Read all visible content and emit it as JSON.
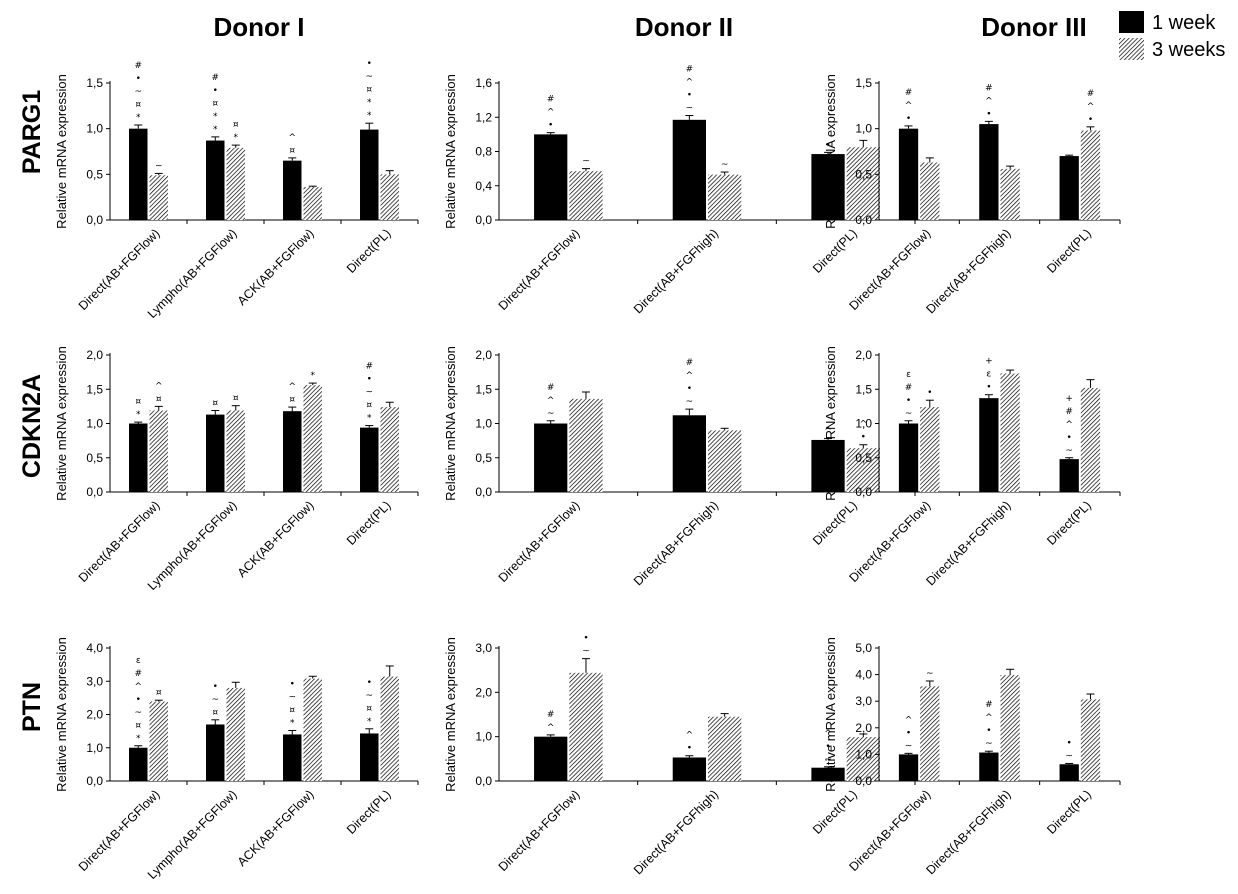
{
  "column_titles": [
    "Donor I",
    "Donor II",
    "Donor III"
  ],
  "row_titles": [
    "PARG1",
    "CDKN2A",
    "PTN"
  ],
  "legend": [
    {
      "label": "1 week",
      "pattern": "solid-black"
    },
    {
      "label": "3 weeks",
      "pattern": "hatched"
    }
  ],
  "colors": {
    "week1": "#000000",
    "week3_hatch": "#000000",
    "background": "#ffffff"
  },
  "chart_data": [
    {
      "type": "bar",
      "gene": "PARG1",
      "donor": "Donor I",
      "ylabel": "Relative mRNA expression",
      "ylim": [
        0,
        1.5
      ],
      "yticks": [
        "0,0",
        "0,5",
        "1,0",
        "1,5"
      ],
      "categories": [
        "Direct(AB+FGFlow)",
        "Lympho(AB+FGFlow)",
        "ACK(AB+FGFlow)",
        "Direct(PL)"
      ],
      "series": [
        {
          "name": "1 week",
          "values": [
            1.0,
            0.87,
            0.65,
            0.99
          ],
          "errors": [
            0.04,
            0.04,
            0.03,
            0.07
          ]
        },
        {
          "name": "3 weeks",
          "values": [
            0.49,
            0.79,
            0.36,
            0.5
          ],
          "errors": [
            0.02,
            0.03,
            0.01,
            0.04
          ]
        }
      ],
      "annotations": [
        [
          "# • ~ ¤ *",
          "~"
        ],
        [
          "# • ¤ * *",
          "¤ *"
        ],
        [
          "^ ¤",
          ""
        ],
        [
          "• ~ ¤ * *",
          ""
        ]
      ]
    },
    {
      "type": "bar",
      "gene": "PARG1",
      "donor": "Donor II",
      "ylabel": "Relative mRNA expression",
      "ylim": [
        0,
        1.6
      ],
      "yticks": [
        "0,0",
        "0,4",
        "0,8",
        "1,2",
        "1,6"
      ],
      "categories": [
        "Direct(AB+FGFlow)",
        "Direct(AB+FGFhigh)",
        "Direct(PL)"
      ],
      "series": [
        {
          "name": "1 week",
          "values": [
            1.0,
            1.17,
            0.77
          ],
          "errors": [
            0.02,
            0.05,
            0.02
          ]
        },
        {
          "name": "3 weeks",
          "values": [
            0.57,
            0.53,
            0.85
          ],
          "errors": [
            0.03,
            0.03,
            0.08
          ]
        }
      ],
      "annotations": [
        [
          "# ^ •",
          "~"
        ],
        [
          "# ^ • ~",
          "~"
        ],
        [
          "•",
          ""
        ]
      ]
    },
    {
      "type": "bar",
      "gene": "PARG1",
      "donor": "Donor III",
      "ylabel": "Relative mRNA expression",
      "ylim": [
        0,
        1.5
      ],
      "yticks": [
        "0,0",
        "0,5",
        "1,0",
        "1,5"
      ],
      "categories": [
        "Direct(AB+FGFlow)",
        "Direct(AB+FGFhigh)",
        "Direct(PL)"
      ],
      "series": [
        {
          "name": "1 week",
          "values": [
            1.0,
            1.05,
            0.7
          ],
          "errors": [
            0.03,
            0.03,
            0.01
          ]
        },
        {
          "name": "3 weeks",
          "values": [
            0.63,
            0.56,
            0.98
          ],
          "errors": [
            0.05,
            0.03,
            0.04
          ]
        }
      ],
      "annotations": [
        [
          "# ^ •",
          ""
        ],
        [
          "# ^ •",
          ""
        ],
        [
          "",
          "# ^ •"
        ]
      ]
    },
    {
      "type": "bar",
      "gene": "CDKN2A",
      "donor": "Donor I",
      "ylabel": "Relative mRNA expression",
      "ylim": [
        0,
        2.0
      ],
      "yticks": [
        "0,0",
        "0,5",
        "1,0",
        "1,5",
        "2,0"
      ],
      "categories": [
        "Direct(AB+FGFlow)",
        "Lympho(AB+FGFlow)",
        "ACK(AB+FGFlow)",
        "Direct(PL)"
      ],
      "series": [
        {
          "name": "1 week",
          "values": [
            1.0,
            1.13,
            1.18,
            0.94
          ],
          "errors": [
            0.02,
            0.06,
            0.06,
            0.03
          ]
        },
        {
          "name": "3 weeks",
          "values": [
            1.19,
            1.19,
            1.56,
            1.24
          ],
          "errors": [
            0.06,
            0.07,
            0.03,
            0.07
          ]
        }
      ],
      "annotations": [
        [
          "¤ *",
          "^ ¤"
        ],
        [
          "¤",
          "¤"
        ],
        [
          "^ ¤",
          "*"
        ],
        [
          "# • ~ ¤ *",
          ""
        ]
      ]
    },
    {
      "type": "bar",
      "gene": "CDKN2A",
      "donor": "Donor II",
      "ylabel": "Relative mRNA expression",
      "ylim": [
        0,
        2.0
      ],
      "yticks": [
        "0,0",
        "0,5",
        "1,0",
        "1,5",
        "2,0"
      ],
      "categories": [
        "Direct(AB+FGFlow)",
        "Direct(AB+FGFhigh)",
        "Direct(PL)"
      ],
      "series": [
        {
          "name": "1 week",
          "values": [
            1.0,
            1.12,
            0.76
          ],
          "errors": [
            0.04,
            0.09,
            0.02
          ]
        },
        {
          "name": "3 weeks",
          "values": [
            1.36,
            0.9,
            0.64
          ],
          "errors": [
            0.1,
            0.03,
            0.05
          ]
        }
      ],
      "annotations": [
        [
          "# ^ ~",
          ""
        ],
        [
          "# ^ • ~",
          ""
        ],
        [
          "^",
          "^ •"
        ]
      ]
    },
    {
      "type": "bar",
      "gene": "CDKN2A",
      "donor": "Donor III",
      "ylabel": "Relative mRNA expression",
      "ylim": [
        0,
        2.0
      ],
      "yticks": [
        "0,0",
        "0,5",
        "1,0",
        "1,5",
        "2,0"
      ],
      "categories": [
        "Direct(AB+FGFlow)",
        "Direct(AB+FGFhigh)",
        "Direct(PL)"
      ],
      "series": [
        {
          "name": "1 week",
          "values": [
            1.0,
            1.37,
            0.48
          ],
          "errors": [
            0.04,
            0.05,
            0.02
          ]
        },
        {
          "name": "3 weeks",
          "values": [
            1.24,
            1.73,
            1.52
          ],
          "errors": [
            0.1,
            0.05,
            0.12
          ]
        }
      ],
      "annotations": [
        [
          "ε # • ~",
          "•"
        ],
        [
          "+ ε •",
          ""
        ],
        [
          "+ # ^ • ~",
          ""
        ]
      ]
    },
    {
      "type": "bar",
      "gene": "PTN",
      "donor": "Donor I",
      "ylabel": "Relative mRNA expression",
      "ylim": [
        0,
        4.0
      ],
      "yticks": [
        "0,0",
        "1,0",
        "2,0",
        "3,0",
        "4,0"
      ],
      "categories": [
        "Direct(AB+FGFlow)",
        "Lympho(AB+FGFlow)",
        "ACK(AB+FGFlow)",
        "Direct(PL)"
      ],
      "series": [
        {
          "name": "1 week",
          "values": [
            1.0,
            1.7,
            1.4,
            1.43
          ],
          "errors": [
            0.06,
            0.14,
            0.12,
            0.14
          ]
        },
        {
          "name": "3 weeks",
          "values": [
            2.39,
            2.8,
            3.08,
            3.14
          ],
          "errors": [
            0.04,
            0.17,
            0.07,
            0.32
          ]
        }
      ],
      "annotations": [
        [
          "ε # ^ • ~ ¤ *",
          "¤"
        ],
        [
          "• ~ ¤",
          ""
        ],
        [
          "• ~ ¤ *",
          ""
        ],
        [
          "• ~ ¤ *",
          ""
        ]
      ]
    },
    {
      "type": "bar",
      "gene": "PTN",
      "donor": "Donor II",
      "ylabel": "Relative mRNA expression",
      "ylim": [
        0,
        3.0
      ],
      "yticks": [
        "0,0",
        "1,0",
        "2,0",
        "3,0"
      ],
      "categories": [
        "Direct(AB+FGFlow)",
        "Direct(AB+FGFhigh)",
        "Direct(PL)"
      ],
      "series": [
        {
          "name": "1 week",
          "values": [
            1.0,
            0.53,
            0.3
          ],
          "errors": [
            0.04,
            0.04,
            0.02
          ]
        },
        {
          "name": "3 weeks",
          "values": [
            2.44,
            1.45,
            0.99
          ],
          "errors": [
            0.32,
            0.07,
            0.07
          ]
        }
      ],
      "annotations": [
        [
          "# ^",
          "• ~"
        ],
        [
          "^ •",
          ""
        ],
        [
          "^ • ~",
          ""
        ]
      ]
    },
    {
      "type": "bar",
      "gene": "PTN",
      "donor": "Donor III",
      "ylabel": "Relative mRNA expression",
      "ylim": [
        0,
        5.0
      ],
      "yticks": [
        "0,0",
        "1,0",
        "2,0",
        "3,0",
        "4,0",
        "5,0"
      ],
      "categories": [
        "Direct(AB+FGFlow)",
        "Direct(AB+FGFhigh)",
        "Direct(PL)"
      ],
      "series": [
        {
          "name": "1 week",
          "values": [
            1.0,
            1.07,
            0.63
          ],
          "errors": [
            0.04,
            0.05,
            0.03
          ]
        },
        {
          "name": "3 weeks",
          "values": [
            3.56,
            3.98,
            3.07
          ],
          "errors": [
            0.2,
            0.22,
            0.2
          ]
        }
      ],
      "annotations": [
        [
          "^ • ~",
          "~"
        ],
        [
          "# ^ • ~",
          ""
        ],
        [
          "• ~",
          ""
        ]
      ]
    }
  ]
}
